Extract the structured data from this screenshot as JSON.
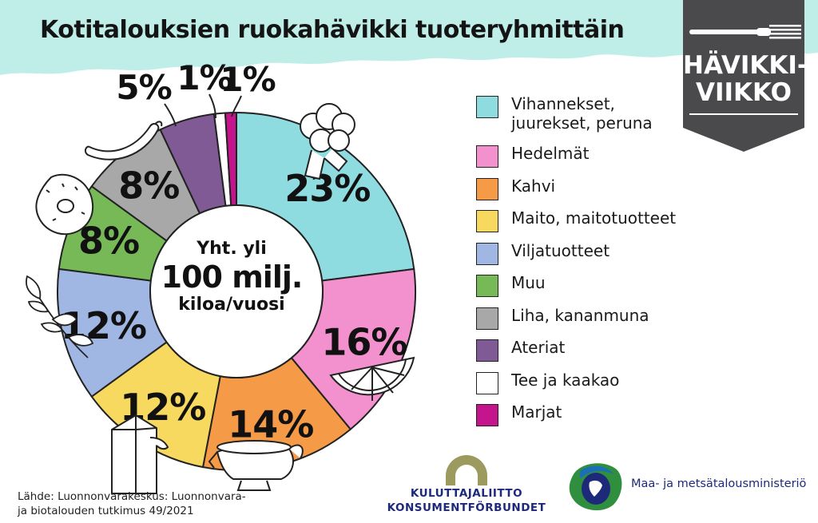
{
  "title": "Kotitalouksien ruokahävikki tuoteryhmittäin",
  "center": {
    "line1": "Yht. yli",
    "line2": "100 milj.",
    "line3": "kiloa/vuosi"
  },
  "badge": {
    "line1": "HÄVIKKI-",
    "line2": "VIIKKO",
    "icon": "fork-icon",
    "color": "#4a4a4c"
  },
  "chart_data": {
    "type": "pie",
    "categories": [
      "Vihannekset, juurekset, peruna",
      "Hedelmät",
      "Kahvi",
      "Maito, maitotuotteet",
      "Viljatuotteet",
      "Muu",
      "Liha, kananmuna",
      "Ateriat",
      "Tee ja kaakao",
      "Marjat"
    ],
    "values": [
      23,
      16,
      14,
      12,
      12,
      8,
      8,
      5,
      1,
      1
    ],
    "value_labels": [
      "23%",
      "16%",
      "14%",
      "12%",
      "12%",
      "8%",
      "8%",
      "5%",
      "1%",
      "1%"
    ],
    "colors": [
      "#8fdce0",
      "#f291cd",
      "#f59a46",
      "#f7d95f",
      "#a0b7e3",
      "#76b956",
      "#a8a8a8",
      "#7f5a94",
      "#ffffff",
      "#c4158c"
    ],
    "legend_placement": "right"
  },
  "legend": [
    {
      "label_line1": "Vihannekset,",
      "label_line2": "juurekset, peruna"
    },
    {
      "label_line1": "Hedelmät",
      "label_line2": ""
    },
    {
      "label_line1": "Kahvi",
      "label_line2": ""
    },
    {
      "label_line1": "Maito, maitotuotteet",
      "label_line2": ""
    },
    {
      "label_line1": "Viljatuotteet",
      "label_line2": ""
    },
    {
      "label_line1": "Muu",
      "label_line2": ""
    },
    {
      "label_line1": "Liha, kananmuna",
      "label_line2": ""
    },
    {
      "label_line1": "Ateriat",
      "label_line2": ""
    },
    {
      "label_line1": "Tee ja kaakao",
      "label_line2": ""
    },
    {
      "label_line1": "Marjat",
      "label_line2": ""
    }
  ],
  "illustrations": [
    "broccoli-icon",
    "lemon-slice-icon",
    "gravy-boat-icon",
    "milk-carton-icon",
    "leaf-branch-icon",
    "donut-icon",
    "sausage-icon"
  ],
  "source": {
    "line1": "Lähde: Luonnonvarakeskus: Luonnonvara-",
    "line2": "ja biotalouden tutkimus 49/2021"
  },
  "logos": {
    "kuluttajaliitto": {
      "line1": "KULUTTAJALIITTO",
      "line2": "KONSUMENTFÖRBUNDET",
      "color": "#1d2a7a",
      "arch_color": "#9c9a5e"
    },
    "ministry": {
      "name": "Maa- ja metsätalousministeriö",
      "icon": "lion-crest-icon"
    }
  },
  "colors": {
    "wave": "#bfeee8",
    "badge": "#4a4a4c",
    "text": "#141414"
  }
}
